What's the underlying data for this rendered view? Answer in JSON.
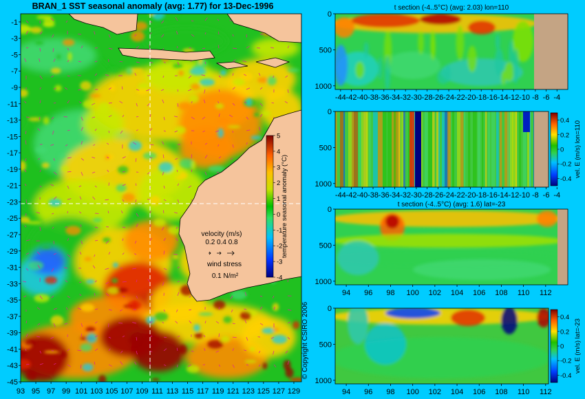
{
  "page": {
    "background": "#00ccff",
    "land_color": "#f5c49c",
    "copyright": "© Copyright CSIRO 2006"
  },
  "chart_data": [
    {
      "type": "heatmap",
      "title": "BRAN_1  SST seasonal anomaly (avg: 1.77) for 13-Dec-1996",
      "x_ticks": [
        "93",
        "95",
        "97",
        "99",
        "101",
        "103",
        "105",
        "107",
        "109",
        "111",
        "113",
        "115",
        "117",
        "119",
        "121",
        "123",
        "125",
        "127",
        "129"
      ],
      "y_ticks": [
        "-1",
        "-3",
        "-5",
        "-7",
        "-9",
        "-11",
        "-13",
        "-15",
        "-17",
        "-19",
        "-21",
        "-23",
        "-25",
        "-27",
        "-29",
        "-31",
        "-33",
        "-35",
        "-37",
        "-39",
        "-41",
        "-43",
        "-45"
      ],
      "xlim": [
        93,
        130
      ],
      "ylim": [
        -45,
        0
      ],
      "grid_lines": {
        "lon": 110,
        "lat": -23
      },
      "colorbar": {
        "label": "temperature seasonal anomaly (°C)",
        "ticks": [
          "5",
          "4",
          "3",
          "2",
          "1",
          "0",
          "-1",
          "-2",
          "-3",
          "-4"
        ],
        "range": [
          -4,
          5
        ]
      },
      "legend": {
        "velocity_title": "velocity (m/s)",
        "velocity_values": "0.2 0.4 0.8",
        "wind_title": "wind stress",
        "wind_value": "0.1 N/m²"
      }
    },
    {
      "type": "heatmap",
      "title": "t section (-4..5°C) (avg: 2.03) lon=110",
      "x_ticks": [
        "-44",
        "-42",
        "-40",
        "-38",
        "-36",
        "-34",
        "-32",
        "-30",
        "-28",
        "-26",
        "-24",
        "-22",
        "-20",
        "-18",
        "-16",
        "-14",
        "-12",
        "-10",
        "-8",
        "-6",
        "-4"
      ],
      "y_ticks": [
        "0",
        "500",
        "1000"
      ],
      "xlim": [
        -45,
        -2
      ],
      "ylim": [
        1050,
        0
      ]
    },
    {
      "type": "heatmap",
      "title": "",
      "x_ticks": [
        "-44",
        "-42",
        "-40",
        "-38",
        "-36",
        "-34",
        "-32",
        "-30",
        "-28",
        "-26",
        "-24",
        "-22",
        "-20",
        "-18",
        "-16",
        "-14",
        "-12",
        "-10",
        "-8",
        "-6",
        "-4"
      ],
      "y_ticks": [
        "0",
        "500",
        "1000"
      ],
      "xlim": [
        -45,
        -2
      ],
      "ylim": [
        1050,
        0
      ],
      "colorbar": {
        "label": "vel. E (m/s) lon=110",
        "ticks": [
          "0.4",
          "0.2",
          "0",
          "-0.2",
          "-0.4"
        ],
        "range": [
          -0.5,
          0.5
        ]
      }
    },
    {
      "type": "heatmap",
      "title": "t section (-4..5°C) (avg: 1.6) lat=-23",
      "x_ticks": [
        "94",
        "96",
        "98",
        "100",
        "102",
        "104",
        "106",
        "108",
        "110",
        "112"
      ],
      "y_ticks": [
        "0",
        "500",
        "1000"
      ],
      "xlim": [
        93,
        114
      ],
      "ylim": [
        1050,
        0
      ]
    },
    {
      "type": "heatmap",
      "title": "",
      "x_ticks": [
        "94",
        "96",
        "98",
        "100",
        "102",
        "104",
        "106",
        "108",
        "110",
        "112"
      ],
      "y_ticks": [
        "0",
        "500",
        "1000"
      ],
      "xlim": [
        93,
        114
      ],
      "ylim": [
        1050,
        0
      ],
      "colorbar": {
        "label": "vel. E (m/s) lat=-23",
        "ticks": [
          "0.4",
          "0.2",
          "0",
          "-0.2",
          "-0.4"
        ],
        "range": [
          -0.5,
          0.5
        ]
      }
    }
  ]
}
